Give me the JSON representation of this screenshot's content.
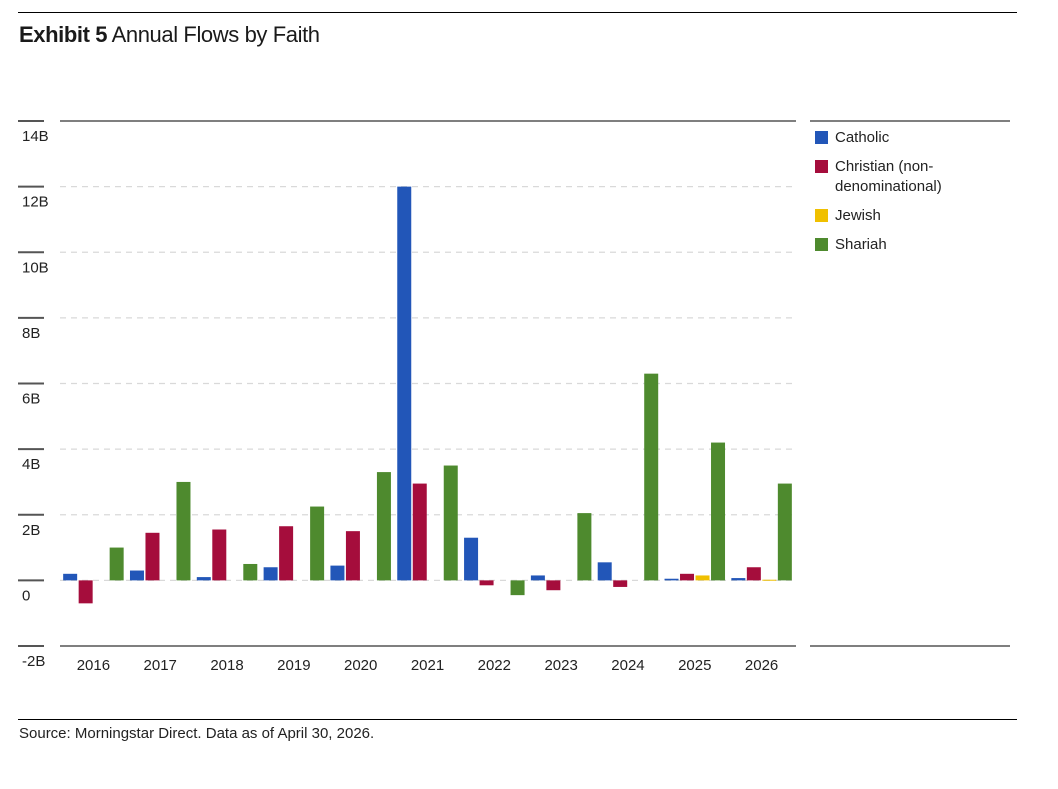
{
  "header": {
    "label": "Exhibit 5",
    "title": "Annual Flows by Faith"
  },
  "footer": {
    "source": "Source: Morningstar Direct. Data as of April 30, 2026."
  },
  "chart_data": {
    "type": "bar",
    "categories": [
      "2016",
      "2017",
      "2018",
      "2019",
      "2020",
      "2021",
      "2022",
      "2023",
      "2024",
      "2025",
      "2026"
    ],
    "series": [
      {
        "name": "Catholic",
        "color": "#2256b8",
        "values": [
          0.2,
          0.3,
          0.1,
          0.4,
          0.45,
          12.0,
          1.3,
          0.15,
          0.55,
          0.05,
          0.07
        ]
      },
      {
        "name": "Christian (non-denominational)",
        "color": "#a50d3c",
        "values": [
          -0.7,
          1.45,
          1.55,
          1.65,
          1.5,
          2.95,
          -0.15,
          -0.3,
          -0.2,
          0.2,
          0.4
        ]
      },
      {
        "name": "Jewish",
        "color": "#f0c000",
        "values": [
          0,
          0,
          0,
          0,
          0,
          0,
          0,
          0,
          0,
          0.15,
          0.02
        ]
      },
      {
        "name": "Shariah",
        "color": "#4e8a2e",
        "values": [
          1.0,
          3.0,
          0.5,
          2.25,
          3.3,
          3.5,
          -0.45,
          2.05,
          6.3,
          4.2,
          2.95
        ]
      }
    ],
    "y_ticks": [
      "14B",
      "12B",
      "10B",
      "8B",
      "6B",
      "4B",
      "2B",
      "0",
      "-2B"
    ],
    "y_tick_values": [
      14,
      12,
      10,
      8,
      6,
      4,
      2,
      0,
      -2
    ],
    "ylim": [
      -2,
      14
    ],
    "units": "B",
    "grid": true,
    "legend_placement": "right"
  }
}
